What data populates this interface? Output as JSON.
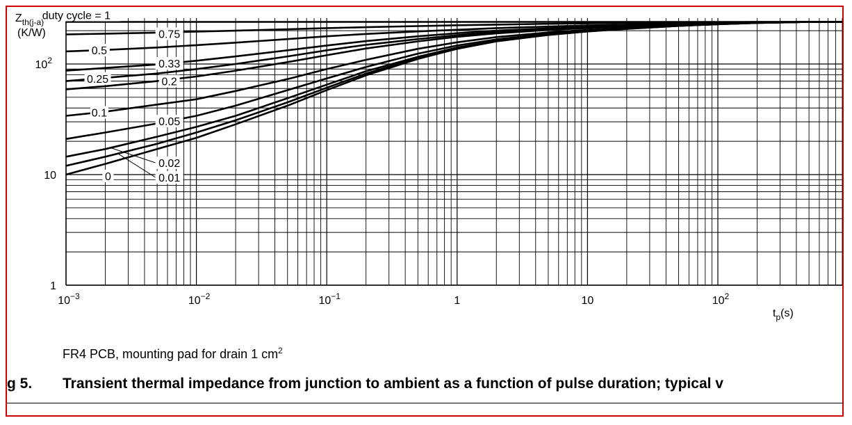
{
  "figure": {
    "footnote_main": "FR4 PCB, mounting pad for drain 1 cm",
    "footnote_sup": "2",
    "caption_number": "g 5.",
    "caption_text": "Transient thermal impedance from junction to ambient as a function of pulse duration; typical v"
  },
  "chart_data": {
    "type": "line",
    "title": "",
    "ylabel": {
      "main": "Z",
      "sub": "th(j-a)",
      "unit": "(K/W)"
    },
    "xlabel": {
      "main": "t",
      "sub": "p",
      "unit": "(s)"
    },
    "xscale": "log",
    "yscale": "log",
    "xlim": [
      0.001,
      900
    ],
    "ylim": [
      1,
      260
    ],
    "grid": true,
    "xticks": [
      {
        "value": 0.001,
        "base": "10",
        "exp": "−3"
      },
      {
        "value": 0.01,
        "base": "10",
        "exp": "−2"
      },
      {
        "value": 0.1,
        "base": "10",
        "exp": "−1"
      },
      {
        "value": 1,
        "base": "1",
        "exp": ""
      },
      {
        "value": 10,
        "base": "10",
        "exp": ""
      },
      {
        "value": 100,
        "base": "10",
        "exp": "2"
      }
    ],
    "yticks": [
      {
        "value": 1,
        "base": "1",
        "exp": ""
      },
      {
        "value": 10,
        "base": "10",
        "exp": ""
      },
      {
        "value": 100,
        "base": "10",
        "exp": "2"
      }
    ],
    "x": [
      0.001,
      0.002,
      0.005,
      0.01,
      0.02,
      0.05,
      0.1,
      0.2,
      0.5,
      1,
      2,
      5,
      10,
      20,
      50,
      100,
      200,
      500,
      900
    ],
    "series": [
      {
        "name": "duty cycle = 1",
        "values": [
          240,
          240,
          240,
          240,
          240,
          240,
          240,
          240,
          240,
          240,
          240,
          240,
          240,
          240,
          240,
          240,
          240,
          240,
          240
        ]
      },
      {
        "name": "0.75",
        "values": [
          185,
          188,
          192,
          196,
          200,
          206,
          211,
          215,
          220,
          224,
          227,
          231,
          233,
          235,
          237,
          238,
          240,
          240,
          240
        ]
      },
      {
        "name": "0.5",
        "values": [
          130,
          134,
          141,
          148,
          156,
          168,
          178,
          187,
          197,
          204,
          211,
          218,
          223,
          227,
          232,
          235,
          238,
          240,
          240
        ]
      },
      {
        "name": "0.33",
        "values": [
          87,
          92,
          99,
          107,
          117,
          133,
          147,
          161,
          178,
          190,
          200,
          210,
          217,
          223,
          230,
          234,
          237,
          240,
          240
        ]
      },
      {
        "name": "0.25",
        "values": [
          70,
          75,
          82,
          90,
          100,
          117,
          133,
          149,
          168,
          182,
          194,
          206,
          213,
          220,
          228,
          233,
          237,
          240,
          240
        ]
      },
      {
        "name": "0.2",
        "values": [
          59,
          63,
          70,
          77,
          87,
          104,
          120,
          138,
          160,
          176,
          189,
          203,
          211,
          219,
          227,
          233,
          237,
          240,
          240
        ]
      },
      {
        "name": "0.1",
        "values": [
          34,
          37,
          43,
          48,
          57,
          73,
          90,
          109,
          137,
          157,
          175,
          193,
          203,
          212,
          223,
          230,
          236,
          240,
          240
        ]
      },
      {
        "name": "0.05",
        "values": [
          21,
          24,
          29,
          34,
          42,
          58,
          74,
          94,
          124,
          147,
          167,
          188,
          200,
          210,
          222,
          230,
          236,
          240,
          240
        ]
      },
      {
        "name": "0.02",
        "values": [
          14.5,
          17,
          22,
          27,
          34,
          49,
          65,
          86,
          116,
          141,
          162,
          185,
          198,
          209,
          221,
          229,
          235,
          240,
          240
        ]
      },
      {
        "name": "0.01",
        "values": [
          12,
          14.5,
          19,
          24,
          31,
          45,
          61,
          82,
          113,
          139,
          161,
          184,
          197,
          208,
          221,
          229,
          235,
          240,
          240
        ]
      },
      {
        "name": "0",
        "values": [
          10,
          12.5,
          17,
          21.5,
          28.5,
          42,
          58,
          79,
          111,
          137,
          160,
          183,
          197,
          208,
          221,
          229,
          235,
          240,
          240
        ]
      }
    ]
  }
}
